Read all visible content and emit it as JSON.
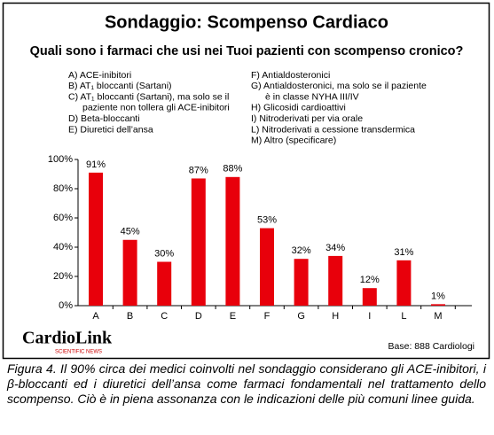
{
  "chart_data": {
    "type": "bar",
    "title": "Sondaggio: Scompenso Cardiaco",
    "subtitle": "Quali sono i farmaci che usi nei Tuoi pazienti con scompenso cronico?",
    "legend_items": [
      [
        "A) ACE-inibitori"
      ],
      [
        "B) AT₁ bloccanti (Sartani)"
      ],
      [
        "C) AT₁ bloccanti (Sartani), ma solo se il",
        "paziente non tollera gli ACE-inibitori"
      ],
      [
        "D) Beta-bloccanti"
      ],
      [
        "E) Diuretici dell’ansa"
      ],
      [
        "F) Antialdosteronici"
      ],
      [
        "G) Antialdosteronici, ma solo se il paziente",
        "è in classe NYHA III/IV"
      ],
      [
        "H) Glicosidi cardioattivi"
      ],
      [
        "I) Nitroderivati per via orale"
      ],
      [
        "L) Nitroderivati a cessione transdermica"
      ],
      [
        "M) Altro (specificare)"
      ]
    ],
    "categories": [
      "A",
      "B",
      "C",
      "D",
      "E",
      "F",
      "G",
      "H",
      "I",
      "L",
      "M"
    ],
    "values": [
      91,
      45,
      30,
      87,
      88,
      53,
      32,
      34,
      12,
      31,
      1
    ],
    "value_labels": [
      "91%",
      "45%",
      "30%",
      "87%",
      "88%",
      "53%",
      "32%",
      "34%",
      "12%",
      "31%",
      "1%"
    ],
    "color": "#e8000b",
    "ylim": [
      0,
      100
    ],
    "yticks": [
      {
        "value": 0,
        "label": "0%"
      },
      {
        "value": 20,
        "label": "20%"
      },
      {
        "value": 40,
        "label": "40%"
      },
      {
        "value": 60,
        "label": "60%"
      },
      {
        "value": 80,
        "label": "80%"
      },
      {
        "value": 100,
        "label": "100%"
      }
    ],
    "logo": "CardioLink",
    "logo_tagline": "SCIENTIFIC NEWS",
    "source": "Base: 888 Cardiologi"
  },
  "caption": "Figura 4. Il 90% circa dei medici coinvolti nel sondaggio considerano gli ACE-inibitori, i β-bloccanti ed i diuretici dell’ansa come farmaci fondamentali nel trattamento dello scompenso. Ciò è in piena assonanza con le indicazioni delle più comuni linee guida."
}
